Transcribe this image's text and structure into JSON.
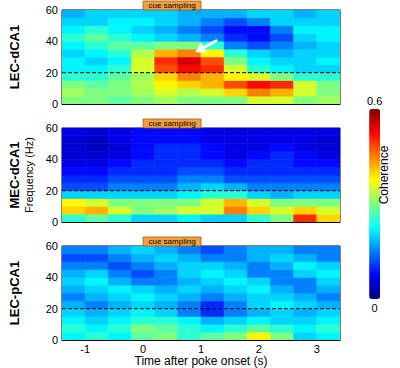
{
  "chart_data": {
    "type": "heatmap",
    "x_bins": [
      -1.4,
      -1.0,
      -0.6,
      -0.2,
      0.2,
      0.6,
      1.0,
      1.4,
      1.8,
      2.2,
      2.6,
      3.0,
      3.4
    ],
    "y_bins": [
      0,
      5,
      10,
      15,
      20,
      25,
      30,
      35,
      40,
      45,
      50,
      55,
      60
    ],
    "xlim": [
      -1.4,
      3.4
    ],
    "xticks": [
      -1,
      0,
      1,
      2,
      3
    ],
    "ylim": [
      0,
      60
    ],
    "yticks": [
      0,
      20,
      40,
      60
    ],
    "colorbar": {
      "label": "Coherence",
      "range": [
        0,
        0.6
      ],
      "ticks": [
        0,
        0.6
      ]
    },
    "panels": [
      {
        "title": "LEC-dCA1",
        "tick_labels": "y",
        "annotation": {
          "text": "cue sampling",
          "x": [
            0,
            1
          ]
        },
        "reference_line": 20,
        "arrow": {
          "x": 0.9,
          "y": 33
        },
        "cells": [
          [
            0.3,
            0.3,
            0.28,
            0.3,
            0.32,
            0.3,
            0.3,
            0.3,
            0.35,
            0.35,
            0.3,
            0.32
          ],
          [
            0.32,
            0.3,
            0.3,
            0.32,
            0.35,
            0.33,
            0.35,
            0.4,
            0.45,
            0.42,
            0.35,
            0.3
          ],
          [
            0.3,
            0.28,
            0.3,
            0.33,
            0.38,
            0.4,
            0.42,
            0.48,
            0.52,
            0.5,
            0.35,
            0.3
          ],
          [
            0.25,
            0.25,
            0.28,
            0.32,
            0.4,
            0.45,
            0.42,
            0.38,
            0.35,
            0.3,
            0.25,
            0.25
          ],
          [
            0.22,
            0.22,
            0.25,
            0.35,
            0.48,
            0.52,
            0.5,
            0.35,
            0.25,
            0.22,
            0.2,
            0.2
          ],
          [
            0.22,
            0.2,
            0.22,
            0.35,
            0.5,
            0.55,
            0.48,
            0.3,
            0.22,
            0.2,
            0.2,
            0.22
          ],
          [
            0.2,
            0.22,
            0.25,
            0.33,
            0.42,
            0.45,
            0.38,
            0.25,
            0.2,
            0.18,
            0.2,
            0.2
          ],
          [
            0.22,
            0.25,
            0.28,
            0.28,
            0.3,
            0.3,
            0.25,
            0.15,
            0.12,
            0.15,
            0.18,
            0.2
          ],
          [
            0.25,
            0.28,
            0.25,
            0.22,
            0.2,
            0.18,
            0.15,
            0.1,
            0.08,
            0.12,
            0.2,
            0.22
          ],
          [
            0.22,
            0.25,
            0.22,
            0.2,
            0.18,
            0.15,
            0.12,
            0.08,
            0.08,
            0.15,
            0.22,
            0.22
          ],
          [
            0.2,
            0.2,
            0.22,
            0.22,
            0.2,
            0.18,
            0.15,
            0.12,
            0.15,
            0.2,
            0.2,
            0.2
          ],
          [
            0.18,
            0.2,
            0.2,
            0.2,
            0.2,
            0.18,
            0.18,
            0.18,
            0.2,
            0.2,
            0.18,
            0.2
          ]
        ]
      },
      {
        "title": "MEC-dCA1",
        "tick_labels": "y",
        "y_label": "Frequency (Hz)",
        "annotation": {
          "text": "cue sampling",
          "x": [
            0,
            1
          ]
        },
        "reference_line": 20,
        "cells": [
          [
            0.25,
            0.28,
            0.25,
            0.2,
            0.2,
            0.22,
            0.2,
            0.2,
            0.25,
            0.3,
            0.5,
            0.4
          ],
          [
            0.4,
            0.42,
            0.35,
            0.3,
            0.32,
            0.35,
            0.35,
            0.45,
            0.4,
            0.35,
            0.4,
            0.35
          ],
          [
            0.38,
            0.35,
            0.3,
            0.3,
            0.3,
            0.3,
            0.35,
            0.42,
            0.35,
            0.3,
            0.3,
            0.3
          ],
          [
            0.2,
            0.2,
            0.2,
            0.2,
            0.2,
            0.22,
            0.25,
            0.25,
            0.2,
            0.18,
            0.2,
            0.2
          ],
          [
            0.12,
            0.12,
            0.15,
            0.15,
            0.15,
            0.18,
            0.2,
            0.18,
            0.15,
            0.15,
            0.15,
            0.15
          ],
          [
            0.1,
            0.1,
            0.12,
            0.12,
            0.12,
            0.15,
            0.15,
            0.12,
            0.12,
            0.12,
            0.12,
            0.12
          ],
          [
            0.08,
            0.08,
            0.1,
            0.1,
            0.1,
            0.12,
            0.12,
            0.1,
            0.1,
            0.1,
            0.1,
            0.1
          ],
          [
            0.06,
            0.06,
            0.08,
            0.1,
            0.1,
            0.1,
            0.1,
            0.08,
            0.1,
            0.1,
            0.08,
            0.08
          ],
          [
            0.05,
            0.05,
            0.06,
            0.08,
            0.1,
            0.1,
            0.08,
            0.06,
            0.08,
            0.1,
            0.08,
            0.06
          ],
          [
            0.05,
            0.04,
            0.05,
            0.08,
            0.1,
            0.1,
            0.08,
            0.06,
            0.06,
            0.08,
            0.06,
            0.05
          ],
          [
            0.05,
            0.04,
            0.06,
            0.08,
            0.08,
            0.08,
            0.06,
            0.06,
            0.06,
            0.06,
            0.06,
            0.05
          ],
          [
            0.06,
            0.05,
            0.06,
            0.08,
            0.08,
            0.08,
            0.06,
            0.06,
            0.06,
            0.06,
            0.06,
            0.06
          ]
        ]
      },
      {
        "title": "LEC-pCA1",
        "tick_labels": true,
        "x_label": "Time after poke onset (s)",
        "annotation": {
          "text": "cue sampling",
          "x": [
            0,
            1
          ]
        },
        "reference_line": 20,
        "cells": [
          [
            0.22,
            0.25,
            0.22,
            0.28,
            0.3,
            0.25,
            0.28,
            0.3,
            0.38,
            0.3,
            0.2,
            0.22
          ],
          [
            0.25,
            0.22,
            0.25,
            0.3,
            0.28,
            0.25,
            0.22,
            0.25,
            0.28,
            0.25,
            0.22,
            0.25
          ],
          [
            0.22,
            0.2,
            0.22,
            0.25,
            0.25,
            0.22,
            0.18,
            0.2,
            0.22,
            0.2,
            0.2,
            0.22
          ],
          [
            0.2,
            0.18,
            0.2,
            0.22,
            0.2,
            0.15,
            0.1,
            0.15,
            0.18,
            0.2,
            0.18,
            0.2
          ],
          [
            0.18,
            0.15,
            0.18,
            0.2,
            0.18,
            0.15,
            0.1,
            0.15,
            0.2,
            0.22,
            0.2,
            0.18
          ],
          [
            0.15,
            0.18,
            0.2,
            0.22,
            0.2,
            0.18,
            0.15,
            0.18,
            0.2,
            0.2,
            0.18,
            0.15
          ],
          [
            0.18,
            0.2,
            0.22,
            0.2,
            0.18,
            0.2,
            0.18,
            0.2,
            0.22,
            0.18,
            0.15,
            0.18
          ],
          [
            0.2,
            0.22,
            0.18,
            0.15,
            0.15,
            0.18,
            0.2,
            0.22,
            0.2,
            0.15,
            0.15,
            0.2
          ],
          [
            0.18,
            0.2,
            0.15,
            0.12,
            0.15,
            0.2,
            0.22,
            0.2,
            0.15,
            0.15,
            0.2,
            0.22
          ],
          [
            0.15,
            0.15,
            0.12,
            0.15,
            0.18,
            0.2,
            0.2,
            0.18,
            0.15,
            0.18,
            0.22,
            0.2
          ],
          [
            0.12,
            0.12,
            0.15,
            0.18,
            0.2,
            0.18,
            0.15,
            0.15,
            0.18,
            0.2,
            0.18,
            0.15
          ],
          [
            0.15,
            0.15,
            0.18,
            0.2,
            0.18,
            0.15,
            0.12,
            0.15,
            0.18,
            0.18,
            0.15,
            0.15
          ]
        ]
      }
    ]
  }
}
